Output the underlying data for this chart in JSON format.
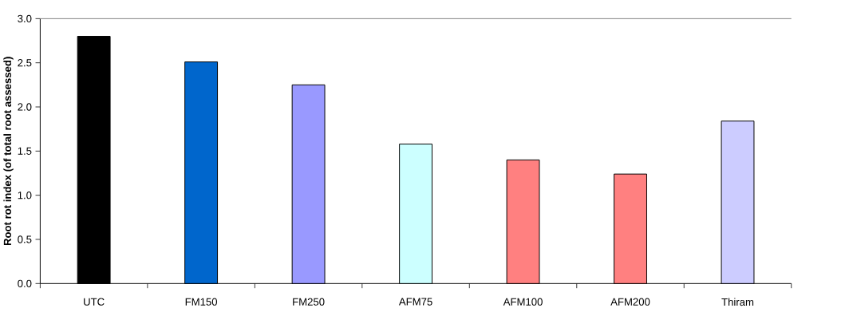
{
  "chart_data": {
    "type": "bar",
    "ylabel": "Root rot index (of total root assessed)",
    "categories": [
      "UTC",
      "FM150",
      "FM250",
      "AFM75",
      "AFM100",
      "AFM200",
      "Thiram"
    ],
    "values": [
      2.8,
      2.51,
      2.25,
      1.58,
      1.4,
      1.24,
      1.84
    ],
    "colors": [
      "#000000",
      "#0066cc",
      "#9999ff",
      "#ccffff",
      "#ff8080",
      "#ff8080",
      "#ccccff"
    ],
    "ylim": [
      0,
      3
    ],
    "yticks": [
      {
        "value": 0,
        "label": "0.0"
      },
      {
        "value": 0.5,
        "label": "0.5"
      },
      {
        "value": 1,
        "label": "1.0"
      },
      {
        "value": 1.5,
        "label": "1.5"
      },
      {
        "value": 2,
        "label": "2.0"
      },
      {
        "value": 2.5,
        "label": "2.5"
      },
      {
        "value": 3,
        "label": "3.0"
      }
    ],
    "grid": false
  }
}
